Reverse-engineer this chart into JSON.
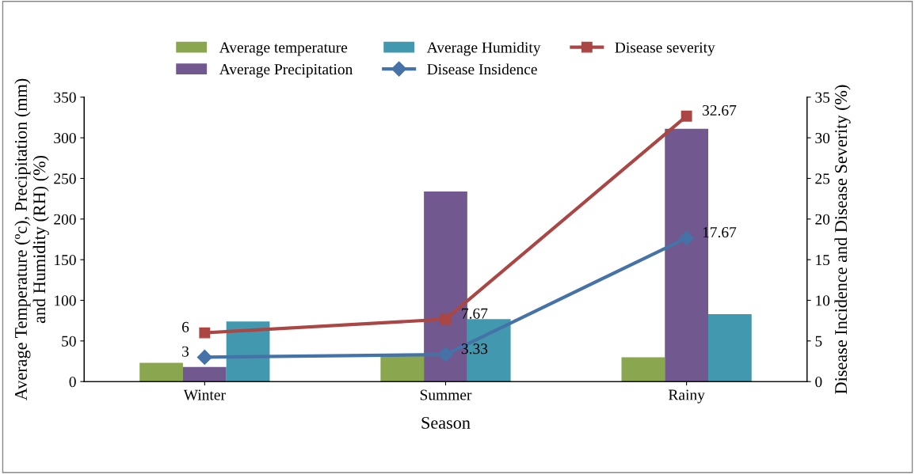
{
  "chart_data": {
    "type": "bar",
    "categories": [
      "Winter",
      "Summer",
      "Rainy"
    ],
    "xlabel": "Season",
    "ylabel": "Average Temperature (ºc), Precipitation (mm)\nand Humidity (RH) (%)",
    "y2label": "Disease Incidence and Disease Severity (%)",
    "ylim": [
      0,
      350
    ],
    "yticks": [
      0,
      50,
      100,
      150,
      200,
      250,
      300,
      350
    ],
    "y2lim": [
      0,
      35
    ],
    "y2ticks": [
      0,
      5,
      10,
      15,
      20,
      25,
      30,
      35
    ],
    "legend": "top",
    "grid": false,
    "series": [
      {
        "name": "Average temperature",
        "color": "#8aa64e",
        "values": [
          23,
          32,
          30
        ]
      },
      {
        "name": "Average Precipitation",
        "color": "#71588f",
        "values": [
          18,
          234,
          311
        ]
      },
      {
        "name": "Average Humidity",
        "color": "#4298af",
        "values": [
          74,
          77,
          83
        ]
      },
      {
        "name": "Disease Insidence",
        "type": "line",
        "axis": "y2",
        "marker": "diamond",
        "color": "#4573a7",
        "values": [
          3,
          3.33,
          17.67
        ],
        "data_labels": true
      },
      {
        "name": "Disease severity",
        "type": "line",
        "axis": "y2",
        "marker": "square",
        "color": "#aa4643",
        "values": [
          6,
          7.67,
          32.67
        ],
        "data_labels": true
      }
    ]
  }
}
